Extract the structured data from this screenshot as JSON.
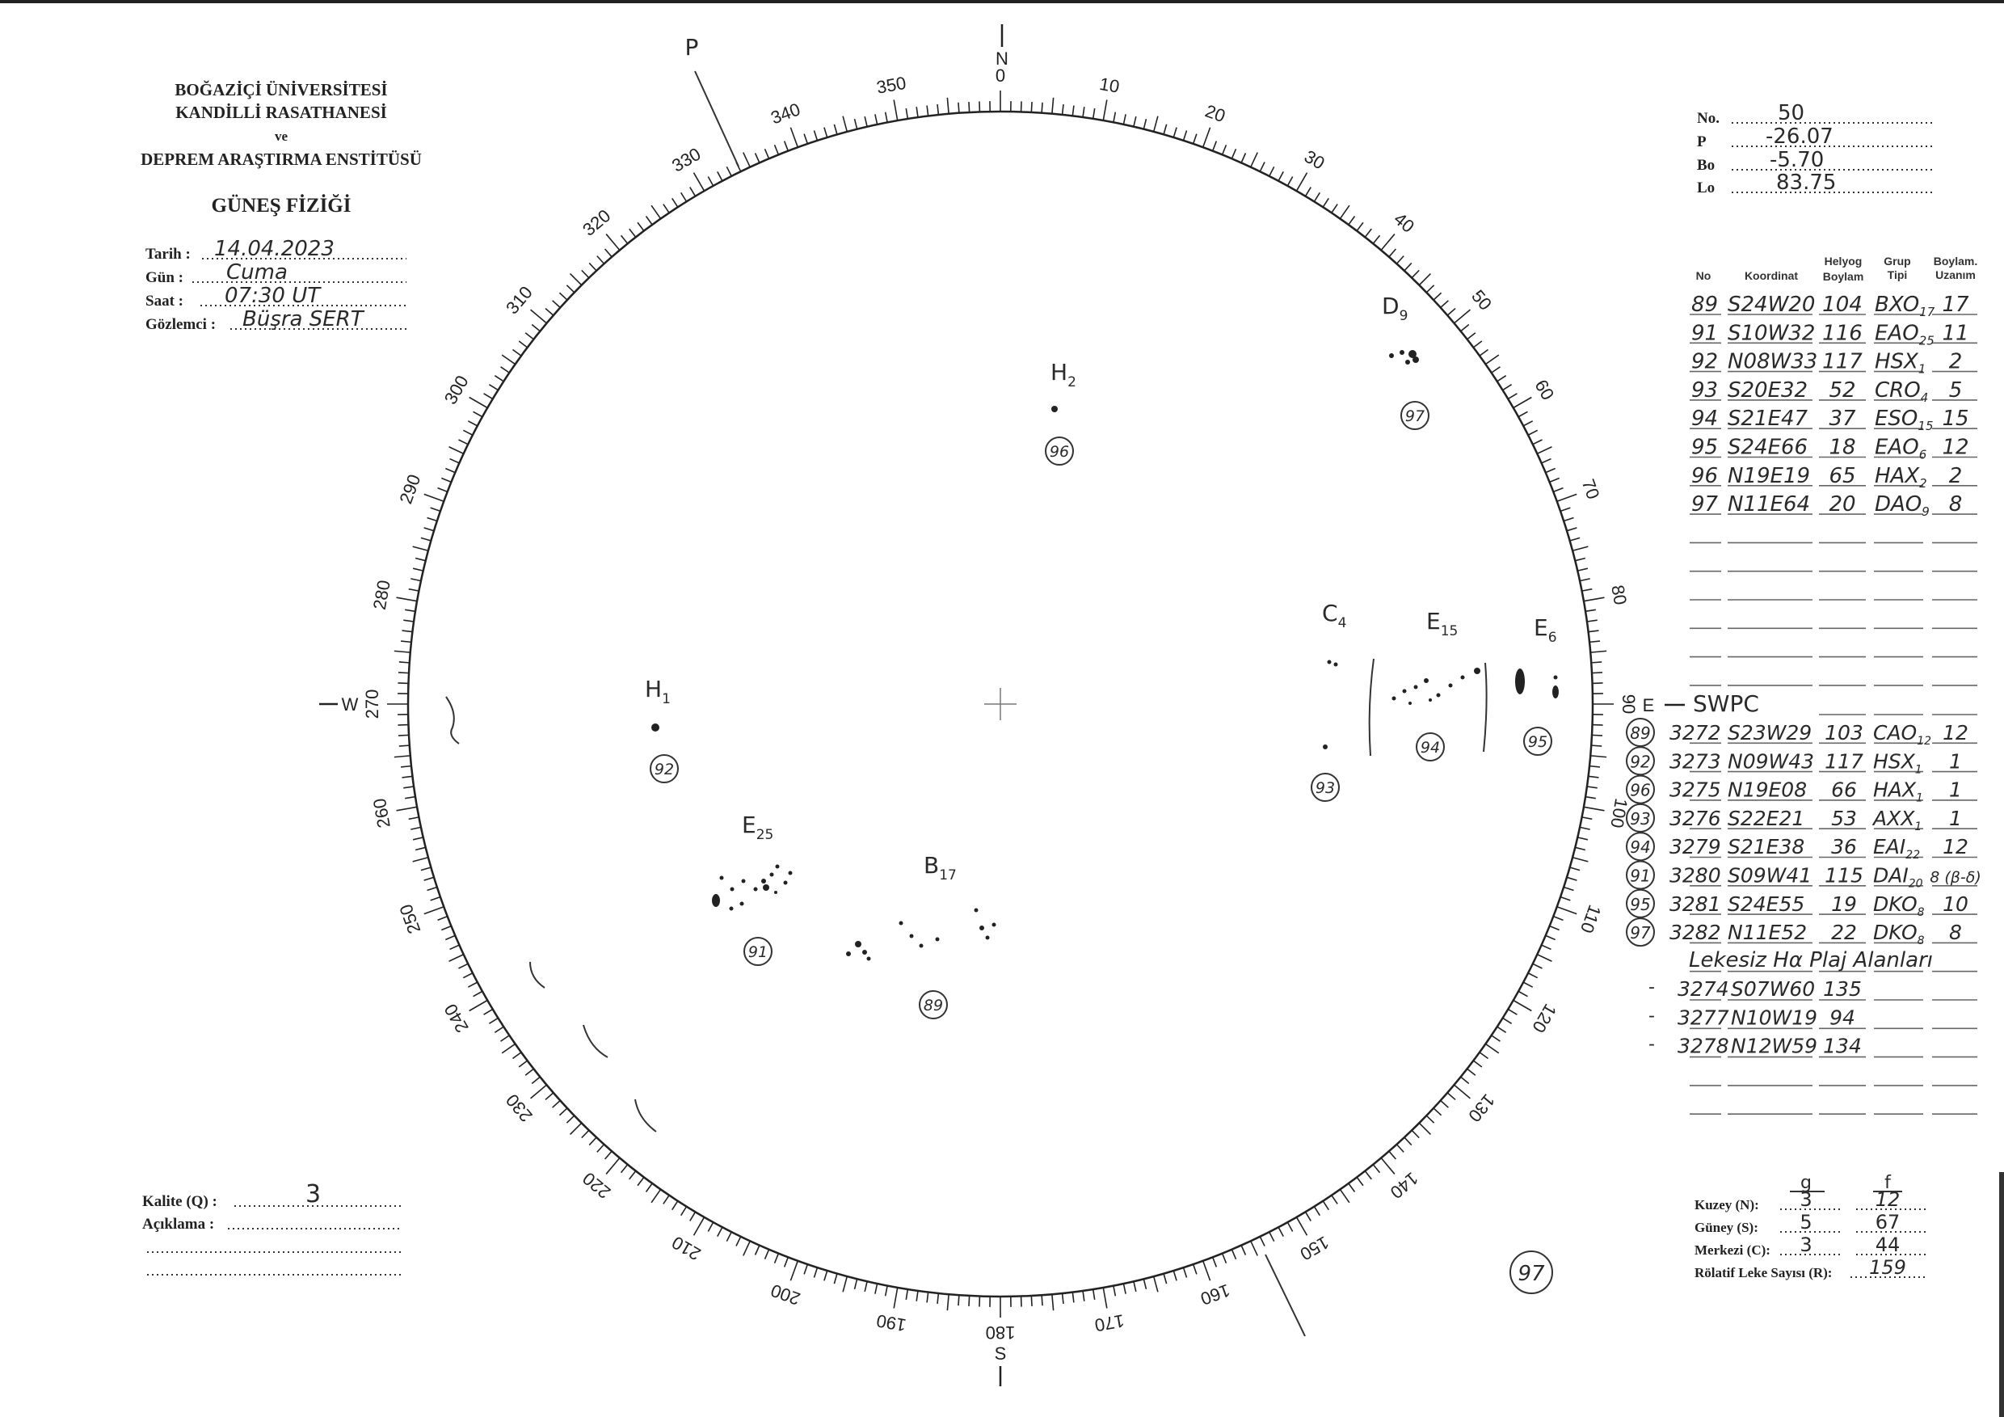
{
  "header": {
    "line1": "BOĞAZİÇİ ÜNİVERSİTESİ",
    "line2": "KANDİLLİ RASATHANESİ",
    "line3": "ve",
    "line4": "DEPREM ARAŞTIRMA ENSTİTÜSÜ",
    "title": "GÜNEŞ FİZİĞİ"
  },
  "form": {
    "date_label": "Tarih :",
    "date_value": "14.04.2023",
    "day_label": "Gün :",
    "day_value": "Cuma",
    "time_label": "Saat :",
    "time_value": "07:30 UT",
    "observer_label": "Gözlemci :",
    "observer_value": "Büşra SERT"
  },
  "params": {
    "no_label": "No.",
    "no_value": "50",
    "p_label": "P",
    "p_value": "-26.07",
    "bo_label": "Bo",
    "bo_value": "-5.70",
    "lo_label": "Lo",
    "lo_value": "83.75"
  },
  "groups_table": {
    "headers": {
      "no": "No",
      "coord": "Koordinat",
      "long1": "Helyog",
      "long2": "Boylam",
      "type1": "Grup",
      "type2": "Tipi",
      "ext1": "Boylam.",
      "ext2": "Uzanım"
    },
    "rows": [
      {
        "no": "89",
        "coord": "S24W20",
        "long": "104",
        "type": "BXO",
        "sub": "17",
        "ext": "17"
      },
      {
        "no": "91",
        "coord": "S10W32",
        "long": "116",
        "type": "EAO",
        "sub": "25",
        "ext": "11"
      },
      {
        "no": "92",
        "coord": "N08W33",
        "long": "117",
        "type": "HSX",
        "sub": "1",
        "ext": "2"
      },
      {
        "no": "93",
        "coord": "S20E32",
        "long": "52",
        "type": "CRO",
        "sub": "4",
        "ext": "5"
      },
      {
        "no": "94",
        "coord": "S21E47",
        "long": "37",
        "type": "ESO",
        "sub": "15",
        "ext": "15"
      },
      {
        "no": "95",
        "coord": "S24E66",
        "long": "18",
        "type": "EAO",
        "sub": "6",
        "ext": "12"
      },
      {
        "no": "96",
        "coord": "N19E19",
        "long": "65",
        "type": "HAX",
        "sub": "2",
        "ext": "2"
      },
      {
        "no": "97",
        "coord": "N11E64",
        "long": "20",
        "type": "DAO",
        "sub": "9",
        "ext": "8"
      }
    ]
  },
  "swpc": {
    "heading": "SWPC",
    "rows": [
      {
        "group": "89",
        "region": "3272",
        "coord": "S23W29",
        "long": "103",
        "type": "CAO",
        "sub": "12",
        "ext": "12"
      },
      {
        "group": "92",
        "region": "3273",
        "coord": "N09W43",
        "long": "117",
        "type": "HSX",
        "sub": "1",
        "ext": "1"
      },
      {
        "group": "96",
        "region": "3275",
        "coord": "N19E08",
        "long": "66",
        "type": "HAX",
        "sub": "1",
        "ext": "1"
      },
      {
        "group": "93",
        "region": "3276",
        "coord": "S22E21",
        "long": "53",
        "type": "AXX",
        "sub": "1",
        "ext": "1"
      },
      {
        "group": "94",
        "region": "3279",
        "coord": "S21E38",
        "long": "36",
        "type": "EAI",
        "sub": "22",
        "ext": "12"
      },
      {
        "group": "91",
        "region": "3280",
        "coord": "S09W41",
        "long": "115",
        "type": "DAI",
        "sub": "20",
        "ext": "8 (β-δ)"
      },
      {
        "group": "95",
        "region": "3281",
        "coord": "S24E55",
        "long": "19",
        "type": "DKO",
        "sub": "8",
        "ext": "10"
      },
      {
        "group": "97",
        "region": "3282",
        "coord": "N11E52",
        "long": "22",
        "type": "DKO",
        "sub": "8",
        "ext": "8"
      }
    ],
    "plage_heading": "Lekesiz Hα Plaj Alanları",
    "plage_rows": [
      {
        "dash": "-",
        "region": "3274",
        "coord": "S07W60",
        "long": "135"
      },
      {
        "dash": "-",
        "region": "3277",
        "coord": "N10W19",
        "long": "94"
      },
      {
        "dash": "-",
        "region": "3278",
        "coord": "N12W59",
        "long": "134"
      }
    ]
  },
  "summary": {
    "g_header": "g",
    "f_header": "f",
    "north_label": "Kuzey (N):",
    "north_g": "3",
    "north_f": "12",
    "south_label": "Güney (S):",
    "south_g": "5",
    "south_f": "67",
    "center_label": "Merkezi (C):",
    "center_g": "3",
    "center_f": "44",
    "r_label": "Rölatif Leke Sayısı (R):",
    "r_value": "159"
  },
  "quality": {
    "kalite_label": "Kalite (Q) :",
    "kalite_value": "3",
    "aciklama_label": "Açıklama :"
  },
  "disk": {
    "north": "N",
    "east": "E",
    "south": "S",
    "west": "W",
    "p_marker": "P",
    "degree_labels": [
      "0",
      "10",
      "20",
      "30",
      "40",
      "50",
      "60",
      "70",
      "80",
      "90",
      "100",
      "110",
      "120",
      "130",
      "140",
      "150",
      "160",
      "170",
      "180",
      "190",
      "200",
      "210",
      "220",
      "230",
      "240",
      "250",
      "260",
      "270",
      "280",
      "290",
      "300",
      "310",
      "320",
      "330",
      "340",
      "350"
    ],
    "spot_groups": [
      {
        "letter": "H",
        "sub": "2",
        "number": "96"
      },
      {
        "letter": "D",
        "sub": "9",
        "number": "97"
      },
      {
        "letter": "C",
        "sub": "4",
        "number": "93"
      },
      {
        "letter": "E",
        "sub": "15",
        "number": "94"
      },
      {
        "letter": "E",
        "sub": "6",
        "number": "95"
      },
      {
        "letter": "H",
        "sub": "1",
        "number": "92"
      },
      {
        "letter": "E",
        "sub": "25",
        "number": "91"
      },
      {
        "letter": "B",
        "sub": "17",
        "number": "89"
      }
    ],
    "extra_circle": "97"
  }
}
